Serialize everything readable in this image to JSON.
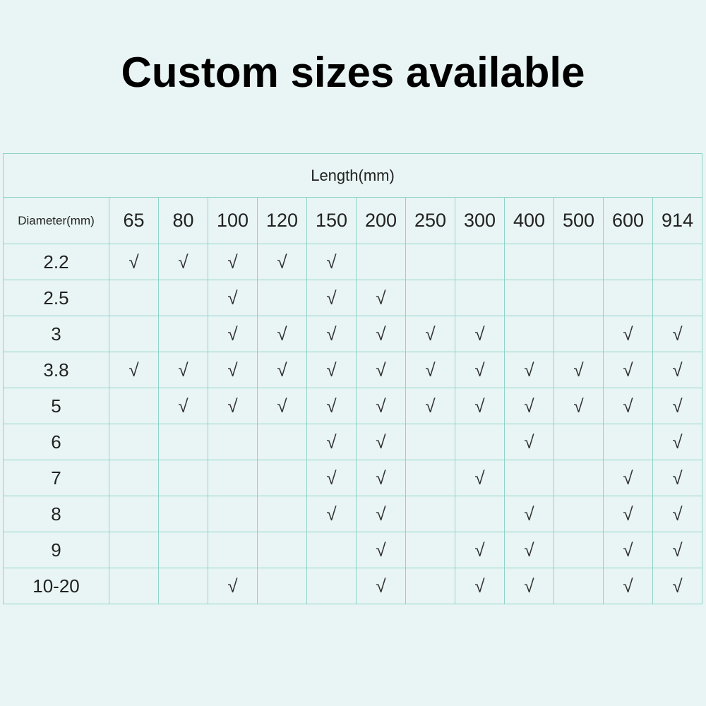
{
  "title": "Custom sizes available",
  "table": {
    "group_header": "Length(mm)",
    "row_header": "Diameter(mm)",
    "columns": [
      "65",
      "80",
      "100",
      "120",
      "150",
      "200",
      "250",
      "300",
      "400",
      "500",
      "600",
      "914"
    ],
    "rows": [
      {
        "label": "2.2",
        "cells": [
          "√",
          "√",
          "√",
          "√",
          "√",
          null,
          null,
          null,
          null,
          null,
          null,
          null
        ]
      },
      {
        "label": "2.5",
        "cells": [
          null,
          null,
          "√",
          null,
          "√",
          "√",
          null,
          null,
          null,
          null,
          null,
          null
        ]
      },
      {
        "label": "3",
        "cells": [
          null,
          null,
          "√",
          "√",
          "√",
          "√",
          "√",
          "√",
          null,
          null,
          "√",
          "√"
        ]
      },
      {
        "label": "3.8",
        "cells": [
          "√",
          "√",
          "√",
          "√",
          "√",
          "√",
          "√",
          "√",
          "√",
          "√",
          "√",
          "√"
        ]
      },
      {
        "label": "5",
        "cells": [
          null,
          "√",
          "√",
          "√",
          "√",
          "√",
          "√",
          "√",
          "√",
          "√",
          "√",
          "√"
        ]
      },
      {
        "label": "6",
        "cells": [
          null,
          null,
          null,
          null,
          "√",
          "√",
          null,
          null,
          "√",
          null,
          null,
          "√"
        ]
      },
      {
        "label": "7",
        "cells": [
          null,
          null,
          null,
          null,
          "√",
          "√",
          null,
          "√",
          null,
          null,
          "√",
          "√"
        ]
      },
      {
        "label": "8",
        "cells": [
          null,
          null,
          null,
          null,
          "√",
          "√",
          null,
          null,
          "√",
          null,
          "√",
          "√"
        ]
      },
      {
        "label": "9",
        "cells": [
          null,
          null,
          null,
          null,
          null,
          "√",
          null,
          "√",
          "√",
          null,
          "√",
          "√"
        ]
      },
      {
        "label": "10-20",
        "cells": [
          null,
          null,
          "√",
          null,
          null,
          "√",
          null,
          "√",
          "√",
          null,
          "√",
          "√"
        ]
      }
    ]
  }
}
